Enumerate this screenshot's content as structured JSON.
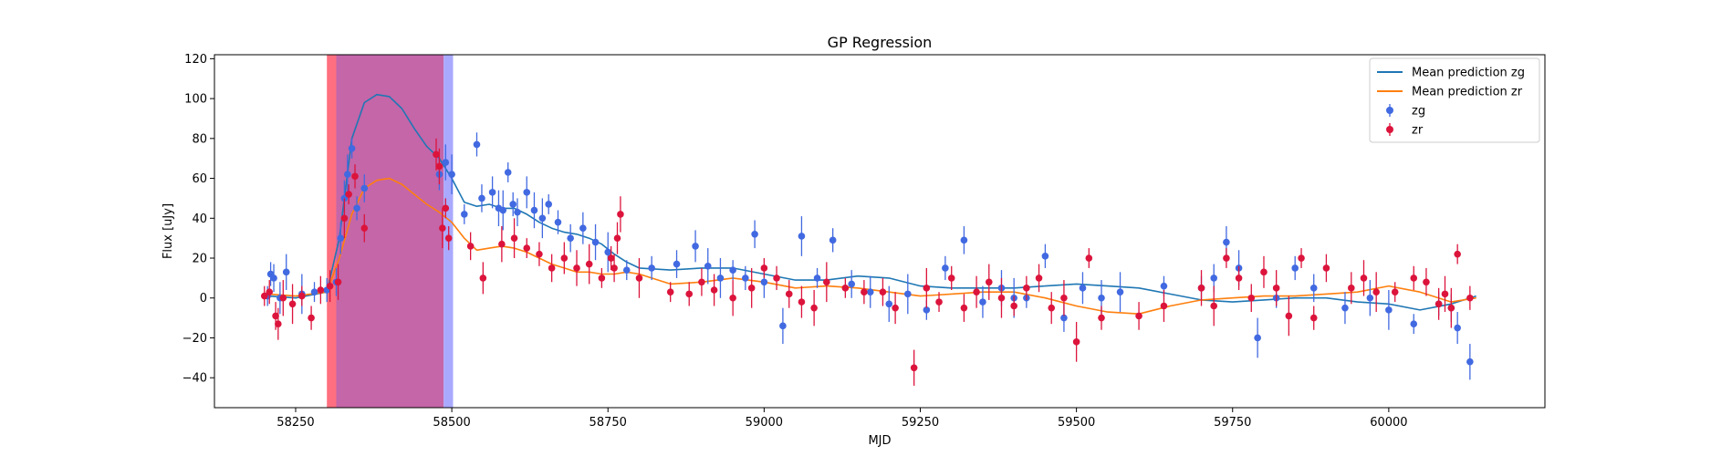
{
  "chart_data": {
    "type": "scatter",
    "title": "GP Regression",
    "xlabel": "MJD",
    "ylabel": "Flux [uJy]",
    "xlim": [
      58120,
      60250
    ],
    "ylim": [
      -55,
      122
    ],
    "xticks": [
      58250,
      58500,
      58750,
      59000,
      59250,
      59500,
      59750,
      60000
    ],
    "yticks": [
      -40,
      -20,
      0,
      20,
      40,
      60,
      80,
      100,
      120
    ],
    "grid": false,
    "legend_position": "top-right",
    "shaded_regions": [
      {
        "x0": 58300,
        "x1": 58315,
        "color": "#ff6f7f"
      },
      {
        "x0": 58315,
        "x1": 58487,
        "color": "#c466a8"
      },
      {
        "x0": 58487,
        "x1": 58502,
        "color": "#a9a9ff"
      }
    ],
    "series": [
      {
        "name": "Mean prediction zg",
        "kind": "line",
        "color": "#1f77b4",
        "x": [
          58205,
          58250,
          58300,
          58320,
          58340,
          58360,
          58380,
          58400,
          58420,
          58440,
          58460,
          58480,
          58500,
          58520,
          58540,
          58560,
          58580,
          58600,
          58620,
          58640,
          58660,
          58680,
          58700,
          58720,
          58740,
          58760,
          58780,
          58800,
          58850,
          58900,
          58950,
          59000,
          59050,
          59100,
          59150,
          59200,
          59250,
          59300,
          59350,
          59400,
          59450,
          59500,
          59550,
          59600,
          59650,
          59700,
          59750,
          59800,
          59850,
          59900,
          59950,
          60000,
          60050,
          60100,
          60140
        ],
        "y": [
          1,
          0,
          3,
          30,
          80,
          98,
          102,
          101,
          95,
          85,
          76,
          70,
          60,
          48,
          46,
          47,
          45,
          45,
          42,
          38,
          35,
          33,
          32,
          30,
          27,
          22,
          18,
          15,
          14,
          15,
          15,
          12,
          9,
          9,
          11,
          10,
          6,
          5,
          5,
          5,
          6,
          7,
          6,
          5,
          2,
          -1,
          -2,
          -1,
          0,
          0,
          -2,
          -3,
          -6,
          -3,
          1
        ]
      },
      {
        "name": "Mean prediction zr",
        "kind": "line",
        "color": "#ff7f0e",
        "x": [
          58205,
          58250,
          58300,
          58320,
          58340,
          58360,
          58380,
          58400,
          58420,
          58440,
          58460,
          58480,
          58500,
          58520,
          58540,
          58560,
          58580,
          58600,
          58620,
          58640,
          58660,
          58680,
          58700,
          58720,
          58740,
          58760,
          58780,
          58800,
          58850,
          58900,
          58950,
          59000,
          59050,
          59100,
          59150,
          59200,
          59250,
          59300,
          59350,
          59400,
          59450,
          59500,
          59550,
          59600,
          59650,
          59700,
          59750,
          59800,
          59850,
          59900,
          59950,
          60000,
          60050,
          60100,
          60140
        ],
        "y": [
          2,
          1,
          3,
          20,
          42,
          55,
          59,
          60,
          57,
          52,
          47,
          43,
          38,
          30,
          24,
          25,
          26,
          25,
          23,
          20,
          17,
          15,
          13,
          13,
          12,
          12,
          13,
          12,
          7,
          8,
          10,
          8,
          5,
          6,
          5,
          3,
          1,
          2,
          3,
          3,
          0,
          -4,
          -7,
          -8,
          -4,
          -1,
          0,
          1,
          1,
          2,
          3,
          6,
          3,
          -2,
          0
        ]
      },
      {
        "name": "zg",
        "kind": "errorbar",
        "color": "#4169e1",
        "x": [
          58205,
          58210,
          58215,
          58225,
          58235,
          58260,
          58280,
          58300,
          58315,
          58322,
          58328,
          58333,
          58340,
          58348,
          58360,
          58480,
          58490,
          58500,
          58520,
          58540,
          58548,
          58565,
          58575,
          58582,
          58590,
          58598,
          58605,
          58620,
          58632,
          58645,
          58655,
          58670,
          58690,
          58710,
          58730,
          58750,
          58780,
          58820,
          58860,
          58890,
          58910,
          58930,
          58950,
          58970,
          58985,
          59000,
          59030,
          59060,
          59085,
          59110,
          59140,
          59170,
          59200,
          59230,
          59260,
          59290,
          59320,
          59350,
          59380,
          59400,
          59420,
          59450,
          59480,
          59510,
          59540,
          59570,
          59640,
          59700,
          59720,
          59740,
          59760,
          59790,
          59820,
          59850,
          59880,
          59930,
          59970,
          60000,
          60040,
          60080,
          60100,
          60110,
          60130
        ],
        "y": [
          1,
          12,
          10,
          0,
          13,
          2,
          3,
          4,
          8,
          30,
          50,
          62,
          75,
          45,
          55,
          62,
          68,
          62,
          42,
          77,
          50,
          53,
          45,
          44,
          63,
          47,
          43,
          53,
          44,
          40,
          47,
          38,
          30,
          35,
          28,
          23,
          14,
          15,
          17,
          26,
          16,
          10,
          14,
          10,
          32,
          8,
          -14,
          31,
          10,
          29,
          7,
          3,
          -3,
          2,
          -6,
          15,
          29,
          -2,
          5,
          0,
          0,
          21,
          -10,
          5,
          0,
          3,
          6,
          5,
          10,
          28,
          15,
          -20,
          0,
          15,
          5,
          -5,
          0,
          -6,
          -13,
          -3,
          -5,
          -15,
          -32
        ]
      },
      {
        "name": "zr",
        "kind": "errorbar",
        "color": "#dc143c",
        "x": [
          58200,
          58208,
          58218,
          58222,
          58230,
          58245,
          58260,
          58275,
          58290,
          58305,
          58318,
          58328,
          58335,
          58345,
          58360,
          58475,
          58480,
          58485,
          58490,
          58495,
          58530,
          58550,
          58580,
          58600,
          58620,
          58640,
          58660,
          58680,
          58700,
          58720,
          58740,
          58755,
          58760,
          58765,
          58770,
          58800,
          58850,
          58880,
          58900,
          58920,
          58950,
          58980,
          59000,
          59020,
          59040,
          59060,
          59080,
          59100,
          59130,
          59160,
          59190,
          59210,
          59240,
          59260,
          59280,
          59300,
          59320,
          59340,
          59360,
          59380,
          59400,
          59420,
          59440,
          59460,
          59480,
          59500,
          59520,
          59540,
          59600,
          59640,
          59700,
          59720,
          59740,
          59760,
          59780,
          59800,
          59820,
          59840,
          59860,
          59880,
          59900,
          59940,
          59960,
          59980,
          60010,
          60040,
          60060,
          60080,
          60090,
          60100,
          60110,
          60130
        ],
        "y": [
          1,
          3,
          -9,
          -13,
          0,
          -3,
          1,
          -10,
          4,
          6,
          8,
          40,
          52,
          61,
          35,
          72,
          66,
          35,
          45,
          30,
          26,
          10,
          27,
          30,
          25,
          22,
          15,
          20,
          15,
          17,
          10,
          20,
          15,
          30,
          42,
          10,
          3,
          2,
          8,
          4,
          0,
          5,
          15,
          10,
          2,
          -2,
          -5,
          8,
          5,
          3,
          3,
          -5,
          -35,
          5,
          -2,
          10,
          -5,
          3,
          8,
          0,
          -4,
          5,
          10,
          -5,
          0,
          -22,
          20,
          -10,
          -9,
          -4,
          5,
          -4,
          20,
          10,
          0,
          13,
          5,
          -9,
          20,
          -10,
          15,
          5,
          10,
          3,
          3,
          10,
          8,
          -3,
          2,
          -5,
          22,
          0
        ]
      }
    ]
  }
}
